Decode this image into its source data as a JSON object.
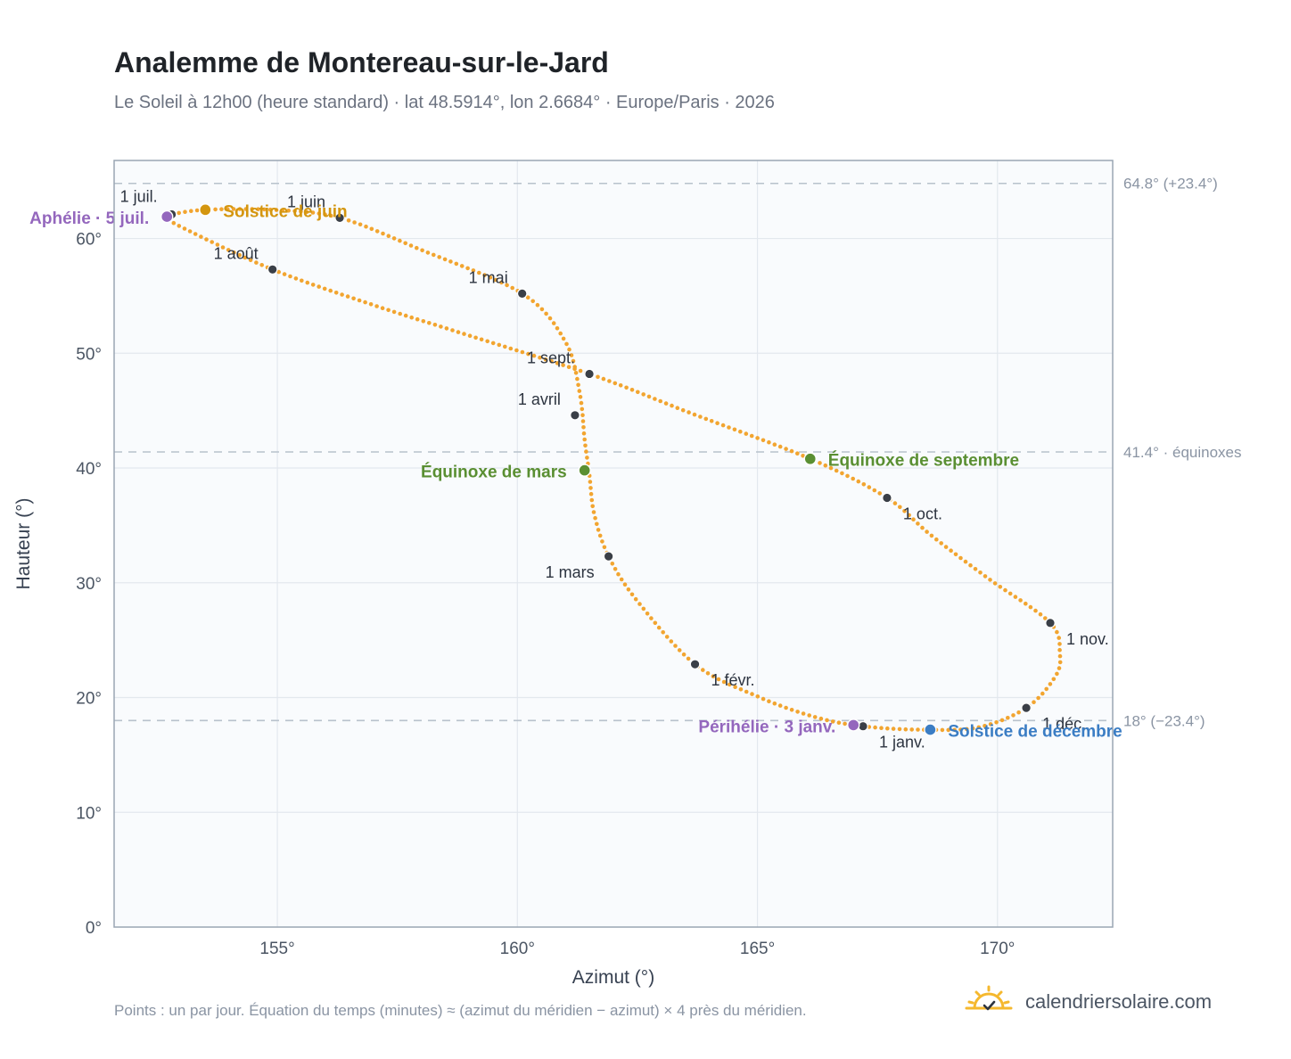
{
  "header": {
    "title": "Analemme de Montereau-sur-le-Jard",
    "subtitle": "Le Soleil à 12h00 (heure standard) · lat 48.5914°, lon 2.6684° · Europe/Paris · 2026"
  },
  "footer": {
    "note": "Points : un par jour. Équation du temps (minutes) ≈ (azimut du méridien − azimut) × 4 près du méridien.",
    "brand": "calendriersolaire.com"
  },
  "colors": {
    "curve": "#f2a530",
    "month_marker": "#3a3f47",
    "solstice_june": "#d4960f",
    "solstice_december": "#3b7dc4",
    "equinox": "#5a8f32",
    "apsis": "#9467bd",
    "plot_bg": "#f9fbfd",
    "grid": "#e3e8ee",
    "reference_line": "#b8c2cc",
    "brand_sun": "#f5b82e"
  },
  "chart_data": {
    "type": "scatter",
    "xlabel": "Azimut (°)",
    "ylabel": "Hauteur (°)",
    "xlim": [
      151.6,
      172.4
    ],
    "ylim": [
      0,
      66.8
    ],
    "xticks": [
      155,
      160,
      165,
      170
    ],
    "yticks": [
      0,
      10,
      20,
      30,
      40,
      50,
      60
    ],
    "grid": true,
    "tick_suffix": "°",
    "curve_series": [
      {
        "name": "analemme",
        "control_points": [
          [
            167.2,
            17.5
          ],
          [
            168.4,
            17.2
          ],
          [
            169.6,
            17.4
          ],
          [
            170.6,
            19.1
          ],
          [
            171.2,
            21.8
          ],
          [
            171.3,
            23.8
          ],
          [
            171.1,
            26.5
          ],
          [
            169.8,
            30.4
          ],
          [
            168.6,
            34.2
          ],
          [
            167.7,
            37.4
          ],
          [
            166.1,
            40.8
          ],
          [
            163.6,
            44.8
          ],
          [
            161.5,
            48.2
          ],
          [
            158.8,
            51.8
          ],
          [
            157.0,
            54.2
          ],
          [
            154.9,
            57.3
          ],
          [
            153.0,
            61.0
          ],
          [
            152.7,
            61.9
          ],
          [
            152.8,
            62.1
          ],
          [
            153.5,
            62.5
          ],
          [
            154.9,
            62.5
          ],
          [
            156.3,
            61.8
          ],
          [
            158.0,
            59.0
          ],
          [
            160.1,
            55.2
          ],
          [
            161.0,
            51.0
          ],
          [
            161.3,
            46.5
          ],
          [
            161.4,
            42.5
          ],
          [
            161.5,
            39.4
          ],
          [
            161.6,
            36.0
          ],
          [
            161.9,
            32.3
          ],
          [
            162.5,
            28.4
          ],
          [
            163.7,
            22.9
          ],
          [
            165.0,
            20.1
          ],
          [
            166.2,
            18.3
          ],
          [
            167.2,
            17.5
          ]
        ]
      }
    ],
    "month_markers": [
      {
        "label": "1 janv.",
        "x": 167.2,
        "y": 17.5
      },
      {
        "label": "1 févr.",
        "x": 163.7,
        "y": 22.9
      },
      {
        "label": "1 mars",
        "x": 161.9,
        "y": 32.3
      },
      {
        "label": "1 avril",
        "x": 161.2,
        "y": 44.6
      },
      {
        "label": "1 mai",
        "x": 160.1,
        "y": 55.2
      },
      {
        "label": "1 juin",
        "x": 156.3,
        "y": 61.8
      },
      {
        "label": "1 juil.",
        "x": 152.8,
        "y": 62.1
      },
      {
        "label": "1 août",
        "x": 154.9,
        "y": 57.3
      },
      {
        "label": "1 sept.",
        "x": 161.5,
        "y": 48.2
      },
      {
        "label": "1 oct.",
        "x": 167.7,
        "y": 37.4
      },
      {
        "label": "1 nov.",
        "x": 171.1,
        "y": 26.5
      },
      {
        "label": "1 déc.",
        "x": 170.6,
        "y": 19.1
      }
    ],
    "events": [
      {
        "label": "Solstice de juin",
        "x": 153.5,
        "y": 62.5,
        "color_key": "solstice_june"
      },
      {
        "label": "Aphélie · 5 juil.",
        "x": 152.7,
        "y": 61.9,
        "color_key": "apsis"
      },
      {
        "label": "Équinoxe de mars",
        "x": 161.4,
        "y": 39.8,
        "color_key": "equinox"
      },
      {
        "label": "Équinoxe de septembre",
        "x": 166.1,
        "y": 40.8,
        "color_key": "equinox"
      },
      {
        "label": "Périhélie · 3 janv.",
        "x": 167.0,
        "y": 17.6,
        "color_key": "apsis"
      },
      {
        "label": "Solstice de décembre",
        "x": 168.6,
        "y": 17.2,
        "color_key": "solstice_december"
      }
    ],
    "reference_lines": [
      {
        "y": 64.8,
        "label": "64.8° (+23.4°)"
      },
      {
        "y": 41.4,
        "label": "41.4° · équinoxes"
      },
      {
        "y": 18.0,
        "label": "18° (−23.4°)"
      }
    ]
  }
}
